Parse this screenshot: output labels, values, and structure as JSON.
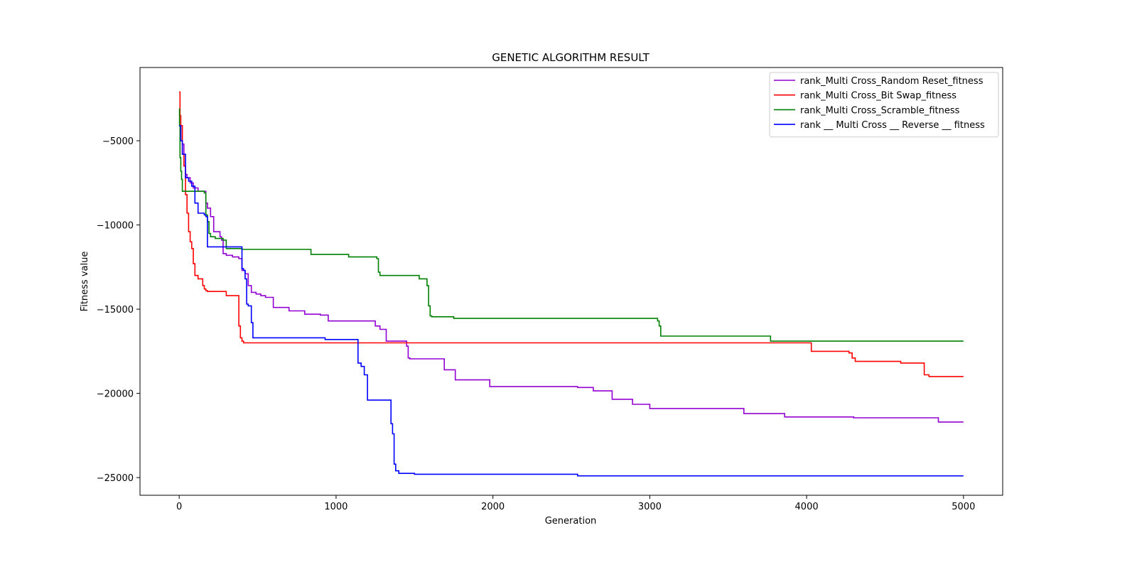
{
  "chart_data": {
    "type": "line",
    "title": "GENETIC ALGORITHM RESULT",
    "xlabel": "Generation",
    "ylabel": "Fitness value",
    "xlim": [
      -250,
      5250
    ],
    "ylim": [
      -26050,
      -650
    ],
    "xticks": [
      0,
      1000,
      2000,
      3000,
      4000,
      5000
    ],
    "xtick_labels": [
      "0",
      "1000",
      "2000",
      "3000",
      "4000",
      "5000"
    ],
    "yticks": [
      -5000,
      -10000,
      -15000,
      -20000,
      -25000
    ],
    "ytick_labels": [
      "−5000",
      "−10000",
      "−15000",
      "−20000",
      "−25000"
    ],
    "grid": false,
    "legend_position": "upper right",
    "step": true,
    "series": [
      {
        "name": "rank_Multi Cross_Random Reset_fitness",
        "color": "#9400d3",
        "x": [
          0,
          10,
          20,
          30,
          40,
          50,
          70,
          90,
          120,
          170,
          180,
          200,
          220,
          260,
          270,
          280,
          300,
          340,
          380,
          400,
          420,
          440,
          460,
          490,
          520,
          550,
          600,
          700,
          800,
          900,
          950,
          1100,
          1250,
          1280,
          1320,
          1450,
          1460,
          1470,
          1550,
          1690,
          1760,
          1980,
          2300,
          2540,
          2640,
          2760,
          2890,
          3000,
          3200,
          3450,
          3600,
          3860,
          4000,
          4300,
          4500,
          4700,
          4840,
          5000
        ],
        "y": [
          -4100,
          -5000,
          -5200,
          -6500,
          -7000,
          -7200,
          -7500,
          -7800,
          -8000,
          -8700,
          -9000,
          -9500,
          -10400,
          -10700,
          -10900,
          -11700,
          -11800,
          -11900,
          -12000,
          -12700,
          -12900,
          -13600,
          -14000,
          -14100,
          -14200,
          -14300,
          -14900,
          -15100,
          -15300,
          -15350,
          -15700,
          -15700,
          -16000,
          -16200,
          -16900,
          -17200,
          -17900,
          -17950,
          -17950,
          -18600,
          -19200,
          -19600,
          -19600,
          -19650,
          -19850,
          -20350,
          -20650,
          -20900,
          -20900,
          -20900,
          -21200,
          -21400,
          -21400,
          -21450,
          -21450,
          -21450,
          -21700,
          -21700
        ]
      },
      {
        "name": "rank_Multi Cross_Bit Swap_fitness",
        "color": "#ff0000",
        "x": [
          0,
          5,
          10,
          20,
          30,
          40,
          50,
          60,
          70,
          80,
          90,
          100,
          120,
          150,
          160,
          170,
          180,
          250,
          300,
          370,
          380,
          390,
          400,
          410,
          500,
          1000,
          2000,
          3000,
          4000,
          4030,
          4050,
          4270,
          4290,
          4310,
          4500,
          4600,
          4730,
          4750,
          4780,
          5000
        ],
        "y": [
          -2100,
          -3500,
          -4100,
          -5800,
          -6500,
          -8200,
          -9300,
          -10400,
          -11000,
          -11400,
          -12300,
          -13000,
          -13200,
          -13600,
          -13800,
          -13900,
          -13950,
          -13950,
          -14200,
          -14200,
          -16000,
          -16700,
          -16900,
          -17000,
          -17000,
          -17000,
          -17000,
          -17000,
          -17000,
          -17500,
          -17500,
          -17600,
          -17900,
          -18100,
          -18100,
          -18200,
          -18200,
          -18900,
          -19000,
          -19000
        ]
      },
      {
        "name": "rank_Multi Cross_Scramble_fitness",
        "color": "#008000",
        "x": [
          0,
          2,
          5,
          10,
          15,
          20,
          160,
          170,
          180,
          190,
          200,
          230,
          280,
          300,
          400,
          500,
          600,
          700,
          830,
          840,
          1070,
          1080,
          1240,
          1260,
          1270,
          1280,
          1400,
          1530,
          1560,
          1580,
          1590,
          1600,
          1610,
          1750,
          2000,
          2500,
          3000,
          3050,
          3060,
          3070,
          3300,
          3750,
          3770,
          4000,
          4500,
          5000
        ],
        "y": [
          -3100,
          -4100,
          -6000,
          -6800,
          -7300,
          -8000,
          -8100,
          -9400,
          -9800,
          -10500,
          -10700,
          -10800,
          -10900,
          -11400,
          -11450,
          -11450,
          -11450,
          -11450,
          -11450,
          -11750,
          -11750,
          -11900,
          -11900,
          -12000,
          -12800,
          -13000,
          -13000,
          -13200,
          -13200,
          -13600,
          -14800,
          -15400,
          -15450,
          -15550,
          -15550,
          -15550,
          -15550,
          -15700,
          -16000,
          -16600,
          -16600,
          -16600,
          -16900,
          -16900,
          -16900,
          -16900
        ]
      },
      {
        "name": "rank __ Multi Cross __ Reverse __ fitness",
        "color": "#0000ff",
        "x": [
          0,
          10,
          20,
          40,
          60,
          80,
          100,
          120,
          160,
          170,
          180,
          230,
          270,
          280,
          300,
          350,
          380,
          400,
          410,
          420,
          430,
          440,
          450,
          460,
          470,
          900,
          930,
          1000,
          1100,
          1140,
          1160,
          1180,
          1200,
          1300,
          1340,
          1350,
          1360,
          1370,
          1380,
          1400,
          1500,
          2000,
          2500,
          2540,
          3000,
          4000,
          5000
        ],
        "y": [
          -4100,
          -5000,
          -5800,
          -7200,
          -7400,
          -7700,
          -8700,
          -9300,
          -9400,
          -9500,
          -11300,
          -11300,
          -11300,
          -11300,
          -11300,
          -11300,
          -11300,
          -12600,
          -12700,
          -13200,
          -14700,
          -14800,
          -14800,
          -15800,
          -16700,
          -16700,
          -16800,
          -16800,
          -16800,
          -18200,
          -18400,
          -18900,
          -20400,
          -20400,
          -20400,
          -21800,
          -22400,
          -24200,
          -24600,
          -24750,
          -24800,
          -24800,
          -24800,
          -24900,
          -24900,
          -24900,
          -24900
        ]
      }
    ]
  }
}
